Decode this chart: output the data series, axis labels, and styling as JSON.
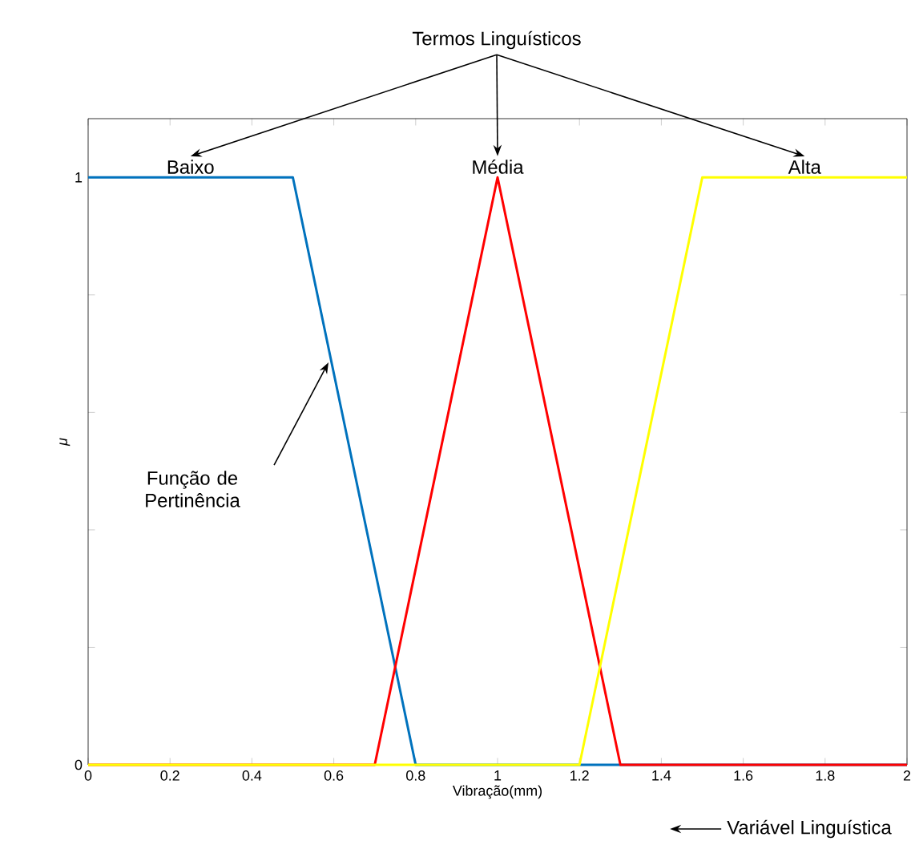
{
  "chart_data": {
    "type": "line",
    "xlabel": "Vibração(mm)",
    "ylabel": "μ",
    "annotations": [
      "Termos Linguísticos",
      "Função de Pertinência",
      "Variável Linguística"
    ],
    "xlim": [
      0,
      2
    ],
    "ylim": [
      0,
      1.1
    ],
    "xticks": [
      0,
      0.2,
      0.4,
      0.6,
      0.8,
      1,
      1.2,
      1.4,
      1.6,
      1.8,
      2
    ],
    "yticks": [
      0,
      {
        "value": 0.2,
        "label": null
      },
      {
        "value": 0.4,
        "label": null
      },
      {
        "value": 0.6,
        "label": null
      },
      {
        "value": 0.8,
        "label": null
      },
      1
    ],
    "series": [
      {
        "name": "Baixo",
        "color": "#0072bd",
        "x": [
          0,
          0.5,
          0.8,
          2
        ],
        "values": [
          1,
          1,
          0,
          0
        ]
      },
      {
        "name": "Média",
        "color": "#ff0000",
        "x": [
          0,
          0.7,
          1,
          1.3,
          2
        ],
        "values": [
          0,
          0,
          1,
          0,
          0
        ]
      },
      {
        "name": "Alta",
        "color": "#ffff00",
        "x": [
          0,
          1.2,
          1.5,
          2
        ],
        "values": [
          0,
          0,
          1,
          1
        ]
      }
    ]
  }
}
